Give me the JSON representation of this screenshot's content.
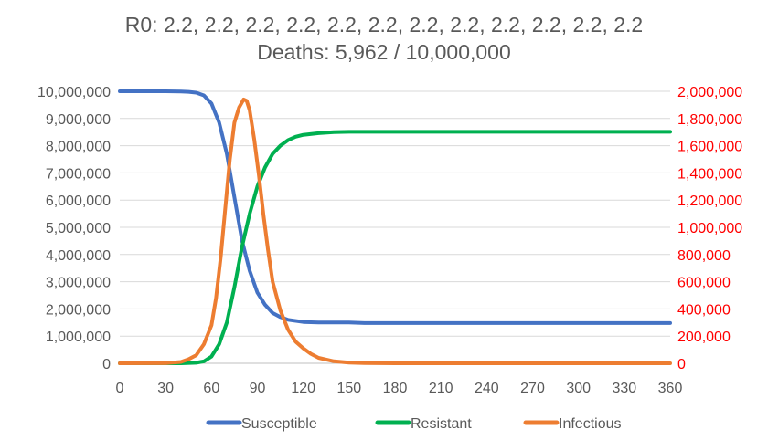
{
  "chart_data": {
    "type": "line",
    "title_lines": [
      "R0: 2.2, 2.2, 2.2, 2.2, 2.2, 2.2, 2.2, 2.2, 2.2, 2.2, 2.2, 2.2",
      "Deaths: 5,962 / 10,000,000"
    ],
    "xlim": [
      0,
      360
    ],
    "x_ticks": [
      0,
      30,
      60,
      90,
      120,
      150,
      180,
      210,
      240,
      270,
      300,
      330,
      360
    ],
    "y_left": {
      "lim": [
        0,
        10000000
      ],
      "ticks": [
        0,
        1000000,
        2000000,
        3000000,
        4000000,
        5000000,
        6000000,
        7000000,
        8000000,
        9000000,
        10000000
      ],
      "tick_labels": [
        "0",
        "1,000,000",
        "2,000,000",
        "3,000,000",
        "4,000,000",
        "5,000,000",
        "6,000,000",
        "7,000,000",
        "8,000,000",
        "9,000,000",
        "10,000,000"
      ],
      "color": "#595959"
    },
    "y_right": {
      "lim": [
        0,
        2000000
      ],
      "ticks": [
        0,
        200000,
        400000,
        600000,
        800000,
        1000000,
        1200000,
        1400000,
        1600000,
        1800000,
        2000000
      ],
      "tick_labels": [
        "0",
        "200,000",
        "400,000",
        "600,000",
        "800,000",
        "1,000,000",
        "1,200,000",
        "1,400,000",
        "1,600,000",
        "1,800,000",
        "2,000,000"
      ],
      "color": "#ff0000"
    },
    "grid": "horizontal",
    "legend_position": "bottom",
    "series": [
      {
        "name": "Susceptible",
        "axis": "left",
        "color": "#4472c4",
        "x": [
          0,
          30,
          40,
          45,
          50,
          55,
          60,
          65,
          70,
          75,
          80,
          85,
          90,
          95,
          100,
          105,
          110,
          120,
          130,
          150,
          160,
          200,
          360
        ],
        "y": [
          10000000,
          9999000,
          9990000,
          9980000,
          9950000,
          9850000,
          9550000,
          8850000,
          7700000,
          6100000,
          4500000,
          3400000,
          2600000,
          2150000,
          1850000,
          1700000,
          1600000,
          1520000,
          1500000,
          1500000,
          1480000,
          1480000,
          1480000
        ]
      },
      {
        "name": "Resistant",
        "axis": "left",
        "color": "#00b050",
        "x": [
          0,
          40,
          50,
          55,
          60,
          65,
          70,
          75,
          80,
          85,
          90,
          95,
          100,
          105,
          110,
          115,
          120,
          130,
          140,
          150,
          360
        ],
        "y": [
          0,
          0,
          20000,
          70000,
          250000,
          700000,
          1500000,
          2800000,
          4300000,
          5500000,
          6500000,
          7200000,
          7700000,
          8000000,
          8200000,
          8330000,
          8400000,
          8460000,
          8500000,
          8510000,
          8510000
        ]
      },
      {
        "name": "Infectious",
        "axis": "right",
        "color": "#ed7d31",
        "x": [
          0,
          30,
          40,
          45,
          50,
          55,
          60,
          63,
          66,
          69,
          72,
          75,
          78,
          81,
          83,
          85,
          88,
          91,
          94,
          97,
          100,
          105,
          110,
          115,
          120,
          125,
          130,
          140,
          150,
          160,
          180,
          360
        ],
        "y": [
          0,
          1000,
          10000,
          30000,
          60000,
          140000,
          280000,
          480000,
          780000,
          1140000,
          1500000,
          1770000,
          1880000,
          1940000,
          1930000,
          1860000,
          1640000,
          1380000,
          1090000,
          830000,
          600000,
          390000,
          250000,
          160000,
          110000,
          70000,
          40000,
          15000,
          5000,
          2000,
          0,
          0
        ]
      }
    ]
  }
}
